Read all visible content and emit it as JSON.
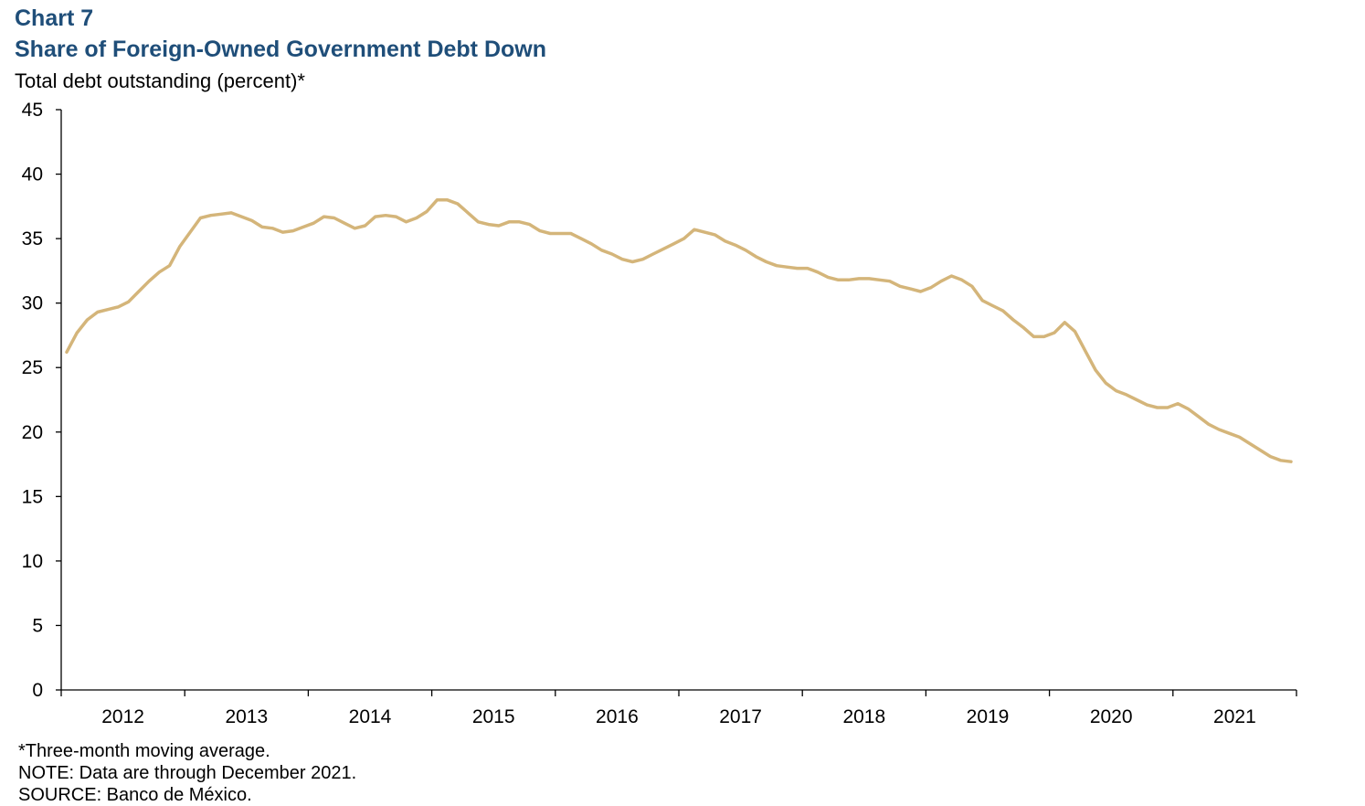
{
  "header": {
    "chart_label": "Chart 7",
    "title": "Share of Foreign-Owned Government Debt Down",
    "y_axis_label": "Total debt outstanding (percent)*"
  },
  "notes": {
    "footnote": "*Three-month moving average.",
    "note": "NOTE: Data are through December 2021.",
    "source": "SOURCE: Banco de México."
  },
  "chart_data": {
    "type": "line",
    "title": "Share of Foreign-Owned Government Debt Down",
    "ylabel": "Total debt outstanding (percent)*",
    "xlabel": "",
    "ylim": [
      0,
      45
    ],
    "yticks": [
      0,
      5,
      10,
      15,
      20,
      25,
      30,
      35,
      40,
      45
    ],
    "xtick_labels": [
      "2012",
      "2013",
      "2014",
      "2015",
      "2016",
      "2017",
      "2018",
      "2019",
      "2020",
      "2021"
    ],
    "x_start": "2012-01",
    "x_end": "2021-12",
    "line_color": "#d4b57a",
    "grid": false,
    "series": [
      {
        "values": [
          26.2,
          27.7,
          28.7,
          29.3,
          29.5,
          29.7,
          30.1,
          30.9,
          31.7,
          32.4,
          32.9,
          34.4,
          35.5,
          36.6,
          36.8,
          36.9,
          37.0,
          36.7,
          36.4,
          35.9,
          35.8,
          35.5,
          35.6,
          35.9,
          36.2,
          36.7,
          36.6,
          36.2,
          35.8,
          36.0,
          36.7,
          36.8,
          36.7,
          36.3,
          36.6,
          37.1,
          38.0,
          38.0,
          37.7,
          37.0,
          36.3,
          36.1,
          36.0,
          36.3,
          36.3,
          36.1,
          35.6,
          35.4,
          35.4,
          35.4,
          35.0,
          34.6,
          34.1,
          33.8,
          33.4,
          33.2,
          33.4,
          33.8,
          34.2,
          34.6,
          35.0,
          35.7,
          35.5,
          35.3,
          34.8,
          34.5,
          34.1,
          33.6,
          33.2,
          32.9,
          32.8,
          32.7,
          32.7,
          32.4,
          32.0,
          31.8,
          31.8,
          31.9,
          31.9,
          31.8,
          31.7,
          31.3,
          31.1,
          30.9,
          31.2,
          31.7,
          32.1,
          31.8,
          31.3,
          30.2,
          29.8,
          29.4,
          28.7,
          28.1,
          27.4,
          27.4,
          27.7,
          28.5,
          27.8,
          26.3,
          24.8,
          23.8,
          23.2,
          22.9,
          22.5,
          22.1,
          21.9,
          21.9,
          22.2,
          21.8,
          21.2,
          20.6,
          20.2,
          19.9,
          19.6,
          19.1,
          18.6,
          18.1,
          17.8,
          17.7
        ]
      }
    ]
  }
}
